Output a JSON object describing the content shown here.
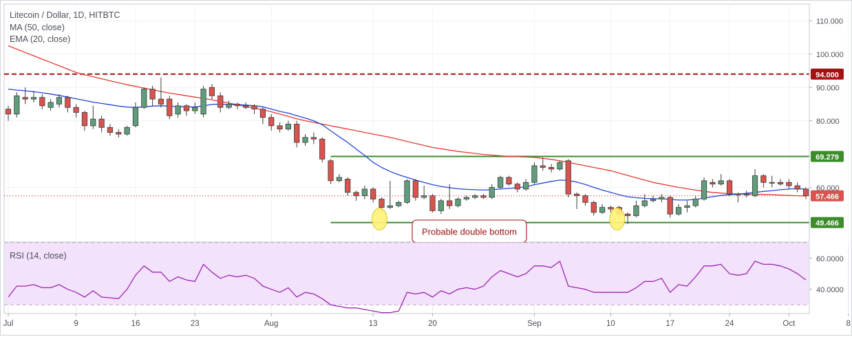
{
  "header": {
    "title": "Litecoin / Dollar, 1D, HITBTC",
    "ma_label": "MA (50, close)",
    "ema_label": "EMA (20, close)"
  },
  "rsi_panel": {
    "label": "RSI (14, close)"
  },
  "annotation": {
    "text": "Probable double bottom"
  },
  "colors": {
    "up": "#5f9e7c",
    "down": "#d9534f",
    "ma": "#e53935",
    "ema": "#2346d5",
    "level_green": "#3c8c2a",
    "level_red": "#a11212",
    "rsi_line": "#9b27b0",
    "rsi_band": "#f3e2fb",
    "marker_fill": "#fff27a",
    "marker_stroke": "#d6c51a"
  },
  "chart_data": [
    {
      "type": "candlestick",
      "title": "Litecoin / Dollar, 1D, HITBTC",
      "y_ticks": [
        {
          "label": "110.000",
          "value": 110
        },
        {
          "label": "100.000",
          "value": 100
        },
        {
          "label": "90.000",
          "value": 90
        },
        {
          "label": "80.000",
          "value": 80
        },
        {
          "label": "60.000",
          "value": 60
        }
      ],
      "ylim": [
        43.6,
        115
      ],
      "x_ticks": [
        {
          "label": "Jul",
          "index": 0
        },
        {
          "label": "9",
          "index": 8
        },
        {
          "label": "16",
          "index": 15
        },
        {
          "label": "23",
          "index": 22
        },
        {
          "label": "Aug",
          "index": 31
        },
        {
          "label": "13",
          "index": 43
        },
        {
          "label": "20",
          "index": 50
        },
        {
          "label": "Sep",
          "index": 62
        },
        {
          "label": "10",
          "index": 71
        },
        {
          "label": "17",
          "index": 78
        },
        {
          "label": "24",
          "index": 85
        },
        {
          "label": "Oct",
          "index": 92
        },
        {
          "label": "8",
          "index": 99
        }
      ],
      "price_levels": [
        {
          "label": "94.000",
          "value": 94.0,
          "style": "dashed",
          "color": "#a11212"
        },
        {
          "label": "69.279",
          "value": 69.279,
          "style": "solid",
          "color": "#3c8c2a",
          "from_index": 38
        },
        {
          "label": "49.466",
          "value": 49.466,
          "style": "solid",
          "color": "#3c8c2a",
          "from_index": 38
        },
        {
          "label": "57.466",
          "value": 57.466,
          "style": "dotted",
          "color": "#d9534f",
          "current": true
        }
      ],
      "markers": [
        {
          "index": 44,
          "value": 50.5
        },
        {
          "index": 72,
          "value": 50.5
        }
      ],
      "candles": [
        [
          83.5,
          82.0,
          80.0,
          84.5
        ],
        [
          82.0,
          87.5,
          81.0,
          88.5
        ],
        [
          87.0,
          86.5,
          85.0,
          90.0
        ],
        [
          86.5,
          87.0,
          85.5,
          89.0
        ],
        [
          87.0,
          84.5,
          83.5,
          88.0
        ],
        [
          84.0,
          85.5,
          83.0,
          86.5
        ],
        [
          85.0,
          87.0,
          84.0,
          88.0
        ],
        [
          87.0,
          84.0,
          82.5,
          87.5
        ],
        [
          84.0,
          82.5,
          81.0,
          85.0
        ],
        [
          82.5,
          78.5,
          77.0,
          83.0
        ],
        [
          78.5,
          80.5,
          77.5,
          84.5
        ],
        [
          80.5,
          78.0,
          76.5,
          81.5
        ],
        [
          78.0,
          76.5,
          75.5,
          79.0
        ],
        [
          76.5,
          76.0,
          75.0,
          77.5
        ],
        [
          76.0,
          78.0,
          75.5,
          78.5
        ],
        [
          78.5,
          84.0,
          78.0,
          85.5
        ],
        [
          84.0,
          89.5,
          83.5,
          90.0
        ],
        [
          89.5,
          86.5,
          84.5,
          90.5
        ],
        [
          86.5,
          85.0,
          84.0,
          93.0
        ],
        [
          86.5,
          81.5,
          80.5,
          87.5
        ],
        [
          82.0,
          84.5,
          81.0,
          85.5
        ],
        [
          84.5,
          83.0,
          81.5,
          85.0
        ],
        [
          83.0,
          84.0,
          82.0,
          85.5
        ],
        [
          82.0,
          89.5,
          81.0,
          90.5
        ],
        [
          90.0,
          87.5,
          86.5,
          91.0
        ],
        [
          87.5,
          84.0,
          82.5,
          88.5
        ],
        [
          84.0,
          85.0,
          83.5,
          86.0
        ],
        [
          85.0,
          84.5,
          83.5,
          85.5
        ],
        [
          84.5,
          84.0,
          83.5,
          85.5
        ],
        [
          84.5,
          83.5,
          82.0,
          85.0
        ],
        [
          83.5,
          81.0,
          79.0,
          84.0
        ],
        [
          81.0,
          78.5,
          77.0,
          82.0
        ],
        [
          78.5,
          77.5,
          76.5,
          79.5
        ],
        [
          77.5,
          79.0,
          77.0,
          80.0
        ],
        [
          79.0,
          73.5,
          72.0,
          80.0
        ],
        [
          73.5,
          75.0,
          72.5,
          76.0
        ],
        [
          75.0,
          74.5,
          73.0,
          76.5
        ],
        [
          74.5,
          68.5,
          67.5,
          75.0
        ],
        [
          68.0,
          62.0,
          61.0,
          68.5
        ],
        [
          62.0,
          63.0,
          61.5,
          64.0
        ],
        [
          62.5,
          58.5,
          57.5,
          63.0
        ],
        [
          58.5,
          57.5,
          56.0,
          59.0
        ],
        [
          57.5,
          59.5,
          56.5,
          60.5
        ],
        [
          59.5,
          56.5,
          55.5,
          60.0
        ],
        [
          56.5,
          54.0,
          52.5,
          57.0
        ],
        [
          54.0,
          54.5,
          53.5,
          62.0
        ],
        [
          54.5,
          55.5,
          54.0,
          56.0
        ],
        [
          55.5,
          62.0,
          55.0,
          62.5
        ],
        [
          62.0,
          57.0,
          56.0,
          62.5
        ],
        [
          57.0,
          57.5,
          56.5,
          60.5
        ],
        [
          57.5,
          53.0,
          52.5,
          58.0
        ],
        [
          53.0,
          56.0,
          52.0,
          56.5
        ],
        [
          56.0,
          54.5,
          53.5,
          61.0
        ],
        [
          54.5,
          56.5,
          54.0,
          57.0
        ],
        [
          56.5,
          57.0,
          56.0,
          57.5
        ],
        [
          57.0,
          57.5,
          56.5,
          58.0
        ],
        [
          57.5,
          57.0,
          56.5,
          58.0
        ],
        [
          57.0,
          60.0,
          56.5,
          61.0
        ],
        [
          60.0,
          63.0,
          59.5,
          63.5
        ],
        [
          63.0,
          61.0,
          60.5,
          63.5
        ],
        [
          61.0,
          59.5,
          58.5,
          61.5
        ],
        [
          59.5,
          61.5,
          59.0,
          62.5
        ],
        [
          61.5,
          66.5,
          61.0,
          67.5
        ],
        [
          66.5,
          66.0,
          65.0,
          69.0
        ],
        [
          66.0,
          65.5,
          64.5,
          67.0
        ],
        [
          65.5,
          67.5,
          65.0,
          68.0
        ],
        [
          68.0,
          58.0,
          57.0,
          68.5
        ],
        [
          58.0,
          57.5,
          53.5,
          58.5
        ],
        [
          57.5,
          55.5,
          54.5,
          58.0
        ],
        [
          55.5,
          52.5,
          51.5,
          56.0
        ],
        [
          52.5,
          54.0,
          52.0,
          55.0
        ],
        [
          54.0,
          53.5,
          52.5,
          54.5
        ],
        [
          54.0,
          52.0,
          51.0,
          54.5
        ],
        [
          52.0,
          51.5,
          49.0,
          52.5
        ],
        [
          51.5,
          54.5,
          51.0,
          56.0
        ],
        [
          54.5,
          56.0,
          54.0,
          58.0
        ],
        [
          56.0,
          56.5,
          55.5,
          57.5
        ],
        [
          56.5,
          57.0,
          55.5,
          58.0
        ],
        [
          57.0,
          52.0,
          51.0,
          57.5
        ],
        [
          52.0,
          54.0,
          51.5,
          55.0
        ],
        [
          54.0,
          54.5,
          52.5,
          56.0
        ],
        [
          54.5,
          56.5,
          54.0,
          57.5
        ],
        [
          56.5,
          62.0,
          56.0,
          63.0
        ],
        [
          61.5,
          61.0,
          60.0,
          62.5
        ],
        [
          61.0,
          62.0,
          60.5,
          64.0
        ],
        [
          62.0,
          58.0,
          57.5,
          62.5
        ],
        [
          58.0,
          58.0,
          55.5,
          58.5
        ],
        [
          58.0,
          58.0,
          57.0,
          59.0
        ],
        [
          57.5,
          63.5,
          57.0,
          65.5
        ],
        [
          63.5,
          61.5,
          60.0,
          64.0
        ],
        [
          61.5,
          61.5,
          60.0,
          63.5
        ],
        [
          61.5,
          61.0,
          60.5,
          62.5
        ],
        [
          61.5,
          60.5,
          59.5,
          62.5
        ],
        [
          60.5,
          59.5,
          58.5,
          61.5
        ],
        [
          59.5,
          57.5,
          56.5,
          60.0
        ]
      ],
      "candle_format": [
        "open",
        "close",
        "low",
        "high"
      ],
      "ma": [
        102.5,
        101.5,
        100.5,
        99.5,
        98.5,
        97.5,
        96.5,
        95.5,
        94.5,
        93.8,
        93.2,
        92.6,
        92.0,
        91.4,
        90.8,
        90.3,
        89.8,
        89.3,
        88.8,
        88.3,
        87.9,
        87.5,
        87.1,
        86.7,
        86.3,
        85.8,
        85.3,
        84.8,
        84.3,
        83.8,
        83.3,
        82.7,
        82.0,
        81.3,
        80.6,
        80.0,
        79.5,
        79.0,
        78.5,
        78.0,
        77.5,
        77.0,
        76.5,
        76.0,
        75.5,
        75.0,
        74.4,
        73.8,
        73.2,
        72.6,
        72.0,
        71.6,
        71.2,
        70.8,
        70.5,
        70.2,
        69.9,
        69.7,
        69.5,
        69.3,
        69.2,
        69.1,
        69.0,
        68.7,
        68.4,
        68.0,
        67.5,
        67.0,
        66.5,
        66.0,
        65.5,
        65.0,
        64.3,
        63.6,
        62.9,
        62.2,
        61.5,
        61.0,
        60.5,
        60.0,
        59.6,
        59.2,
        58.8,
        58.5,
        58.3,
        58.1,
        58.0,
        58.0,
        57.9,
        57.9,
        57.8,
        57.7,
        57.6,
        57.5,
        57.4
      ],
      "ema": [
        89.5,
        89.2,
        89.0,
        88.7,
        88.4,
        88.0,
        87.6,
        87.1,
        86.6,
        86.1,
        85.6,
        85.2,
        84.8,
        84.4,
        84.1,
        84.0,
        84.2,
        84.4,
        84.5,
        84.4,
        84.2,
        84.2,
        84.1,
        84.5,
        84.9,
        85.0,
        84.9,
        84.8,
        84.7,
        84.5,
        84.2,
        83.5,
        82.8,
        82.3,
        81.5,
        80.8,
        80.0,
        78.8,
        77.0,
        75.2,
        73.5,
        71.5,
        69.6,
        67.5,
        66.0,
        64.8,
        63.8,
        63.0,
        62.2,
        61.5,
        60.8,
        60.3,
        59.9,
        59.6,
        59.4,
        59.3,
        59.2,
        59.3,
        59.5,
        59.7,
        59.9,
        60.2,
        60.8,
        61.3,
        61.8,
        62.2,
        62.1,
        61.6,
        60.9,
        60.0,
        59.2,
        58.5,
        57.8,
        57.2,
        56.9,
        56.7,
        56.6,
        56.6,
        56.4,
        56.2,
        56.2,
        56.4,
        56.8,
        57.2,
        57.6,
        57.8,
        58.0,
        58.2,
        58.5,
        58.8,
        59.0,
        59.3,
        59.5,
        59.6,
        59.5
      ]
    },
    {
      "type": "line",
      "title": "RSI (14, close)",
      "y_ticks": [
        {
          "label": "60.0000",
          "value": 60
        },
        {
          "label": "40.0000",
          "value": 40
        }
      ],
      "ylim": [
        24.4,
        69.0
      ],
      "band": [
        30,
        70
      ],
      "values": [
        35,
        42,
        42,
        43,
        41,
        41,
        43,
        40,
        38,
        35,
        39,
        35,
        34.5,
        34,
        40,
        49,
        55,
        51,
        51,
        45,
        48,
        46,
        45,
        56,
        51,
        47,
        49,
        48,
        49,
        47,
        42,
        40,
        38,
        41,
        35,
        38,
        37,
        34,
        30,
        29,
        28,
        28,
        27,
        26,
        25,
        25,
        26,
        38,
        37,
        38,
        35,
        39,
        37,
        40,
        41,
        40,
        42,
        48,
        52,
        50,
        48,
        50,
        55,
        55,
        54,
        58,
        42,
        41,
        40,
        38,
        38,
        38,
        38,
        38,
        41,
        45,
        45,
        47,
        38,
        43,
        42,
        48,
        55,
        55,
        56,
        50,
        49,
        50,
        58,
        56,
        56,
        55,
        53,
        50,
        46
      ]
    }
  ]
}
